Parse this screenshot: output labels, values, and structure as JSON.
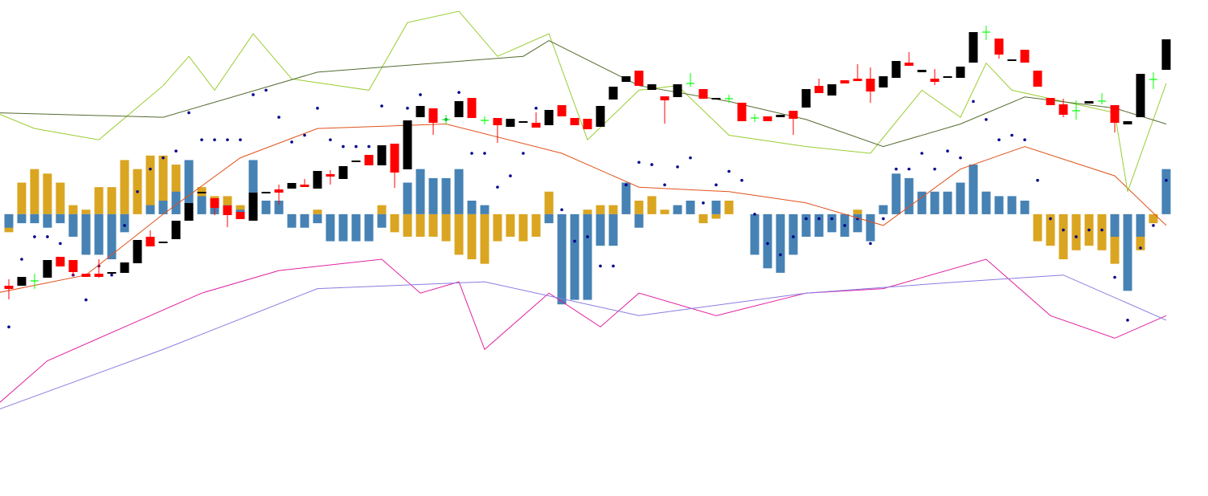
{
  "chart_data": [
    {
      "type": "candlestick",
      "xlim": [
        -0.6875,
        93.25
      ],
      "ylim": [
        0,
        618
      ],
      "up_color": "#000000",
      "down_color": "#ff0000",
      "doji_color": "#00ff00",
      "ohlc": [
        [
          262,
          270,
          245,
          258
        ],
        [
          262,
          273,
          262,
          273
        ],
        [
          268,
          277,
          258,
          268
        ],
        [
          272,
          294,
          272,
          294
        ],
        [
          298,
          298,
          286,
          286
        ],
        [
          294,
          294,
          274,
          279
        ],
        [
          277,
          277,
          273,
          273
        ],
        [
          277,
          295,
          272,
          273
        ],
        [
          277,
          279,
          277,
          279
        ],
        [
          278,
          291,
          278,
          291
        ],
        [
          290,
          319,
          290,
          319
        ],
        [
          323,
          331,
          311,
          311
        ],
        [
          315,
          317,
          315,
          317
        ],
        [
          320,
          343,
          320,
          343
        ],
        [
          343,
          365,
          343,
          365
        ],
        [
          377,
          379,
          377,
          379
        ],
        [
          371,
          371,
          350,
          359
        ],
        [
          362,
          362,
          335,
          350
        ],
        [
          354,
          354,
          345,
          345
        ],
        [
          343,
          378,
          343,
          378
        ],
        [
          377,
          379,
          377,
          379
        ],
        [
          382,
          388,
          363,
          378
        ],
        [
          383,
          390,
          383,
          390
        ],
        [
          388,
          395,
          385,
          385
        ],
        [
          383,
          405,
          383,
          405
        ],
        [
          401,
          406,
          388,
          398
        ],
        [
          395,
          411,
          395,
          411
        ],
        [
          417,
          418,
          417,
          418
        ],
        [
          425,
          425,
          412,
          412
        ],
        [
          412,
          437,
          412,
          437
        ],
        [
          439,
          439,
          384,
          403
        ],
        [
          407,
          468,
          407,
          468
        ],
        [
          472,
          486,
          472,
          486
        ],
        [
          483,
          483,
          450,
          465
        ],
        [
          469,
          475,
          463,
          469
        ],
        [
          472,
          492,
          472,
          492
        ],
        [
          496,
          496,
          471,
          471
        ],
        [
          468,
          473,
          463,
          468
        ],
        [
          471,
          471,
          440,
          462
        ],
        [
          460,
          470,
          460,
          470
        ],
        [
          466,
          467,
          466,
          467
        ],
        [
          465,
          478,
          459,
          459
        ],
        [
          462,
          481,
          462,
          481
        ],
        [
          487,
          487,
          473,
          473
        ],
        [
          471,
          471,
          462,
          462
        ],
        [
          470,
          470,
          457,
          457
        ],
        [
          460,
          486,
          460,
          486
        ],
        [
          494,
          510,
          494,
          510
        ],
        [
          516,
          523,
          516,
          523
        ],
        [
          530,
          530,
          511,
          511
        ],
        [
          506,
          513,
          506,
          513
        ],
        [
          498,
          498,
          464,
          493
        ],
        [
          497,
          513,
          497,
          513
        ],
        [
          514,
          527,
          510,
          514
        ],
        [
          507,
          507,
          495,
          495
        ],
        [
          494,
          496,
          494,
          496
        ],
        [
          495,
          500,
          490,
          495
        ],
        [
          490,
          490,
          467,
          467
        ],
        [
          471,
          476,
          466,
          471
        ],
        [
          473,
          473,
          467,
          467
        ],
        [
          472,
          475,
          472,
          475
        ],
        [
          480,
          480,
          450,
          470
        ],
        [
          484,
          507,
          484,
          507
        ],
        [
          511,
          520,
          502,
          502
        ],
        [
          499,
          513,
          499,
          513
        ],
        [
          518,
          518,
          514,
          514
        ],
        [
          520,
          538,
          517,
          517
        ],
        [
          520,
          534,
          490,
          504
        ],
        [
          509,
          523,
          509,
          523
        ],
        [
          521,
          542,
          521,
          542
        ],
        [
          540,
          553,
          536,
          536
        ],
        [
          528,
          531,
          528,
          531
        ],
        [
          520,
          532,
          512,
          516
        ],
        [
          521,
          523,
          521,
          523
        ],
        [
          521,
          535,
          521,
          535
        ],
        [
          540,
          578,
          540,
          578
        ],
        [
          578,
          586,
          568,
          578
        ],
        [
          570,
          570,
          545,
          550
        ],
        [
          542,
          544,
          542,
          544
        ],
        [
          556,
          556,
          540,
          540
        ],
        [
          530,
          530,
          510,
          510
        ],
        [
          496,
          496,
          487,
          487
        ],
        [
          488,
          495,
          472,
          475
        ],
        [
          480,
          493,
          469,
          480
        ],
        [
          489,
          492,
          489,
          492
        ],
        [
          492,
          502,
          488,
          492
        ],
        [
          487,
          487,
          453,
          465
        ],
        [
          463,
          467,
          463,
          467
        ],
        [
          472,
          526,
          472,
          526
        ],
        [
          519,
          528,
          507,
          519
        ],
        [
          531,
          569,
          531,
          569
        ]
      ]
    },
    {
      "type": "indicator",
      "xlim": [
        -0.6875,
        93.25
      ],
      "ylim": [
        -125,
        95
      ],
      "series": [
        {
          "type": "bar",
          "color": "#daa520",
          "values": [
            -8,
            14,
            20,
            18,
            14,
            4,
            2,
            12,
            12,
            24,
            20,
            26,
            26,
            22,
            20,
            12,
            8,
            8,
            4,
            6,
            0,
            0,
            -4,
            -2,
            2,
            0,
            0,
            0,
            0,
            4,
            -8,
            -10,
            -10,
            -10,
            -12,
            -18,
            -20,
            -22,
            -12,
            -10,
            -12,
            -10,
            10,
            0,
            0,
            2,
            4,
            4,
            14,
            6,
            8,
            2,
            0,
            4,
            -4,
            -2,
            6,
            0,
            -2,
            -4,
            -4,
            0,
            0,
            0,
            0,
            0,
            2,
            0,
            0,
            2,
            4,
            2,
            4,
            6,
            8,
            8,
            10,
            0,
            0,
            0,
            -12,
            -14,
            -20,
            -16,
            -14,
            -16,
            -22,
            -20,
            -16,
            -4,
            0
          ]
        },
        {
          "type": "bar",
          "color": "#4682b4",
          "values": [
            -6,
            -4,
            -4,
            -6,
            -4,
            -10,
            -18,
            -18,
            -20,
            -8,
            0,
            4,
            6,
            10,
            24,
            8,
            4,
            4,
            2,
            24,
            6,
            6,
            -6,
            -6,
            -4,
            -12,
            -12,
            -12,
            -12,
            -6,
            0,
            14,
            20,
            16,
            16,
            20,
            6,
            4,
            0,
            0,
            0,
            0,
            -4,
            -40,
            -38,
            -38,
            -14,
            -14,
            14,
            -6,
            0,
            0,
            4,
            6,
            0,
            6,
            0,
            0,
            -18,
            -24,
            -26,
            -18,
            -10,
            -10,
            -8,
            -10,
            -8,
            -12,
            4,
            18,
            16,
            10,
            10,
            10,
            14,
            22,
            10,
            8,
            8,
            6,
            0,
            0,
            0,
            0,
            0,
            0,
            -10,
            -34,
            -10,
            0,
            20
          ]
        },
        {
          "type": "scatter",
          "color": "#00008b",
          "values": [
            -50,
            -20,
            -10,
            -10,
            -13,
            -27,
            -38,
            -23,
            -27,
            -5,
            10,
            20,
            25,
            28,
            45,
            33,
            33,
            33,
            33,
            53,
            55,
            43,
            32,
            35,
            47,
            33,
            30,
            30,
            30,
            48,
            30,
            47,
            53,
            43,
            42,
            54,
            27,
            27,
            12,
            17,
            27,
            47,
            43,
            2,
            -12,
            -10,
            -23,
            -23,
            13,
            23,
            22,
            13,
            21,
            25,
            5,
            13,
            19,
            15,
            0,
            -13,
            -18,
            -10,
            -2,
            -2,
            -2,
            -5,
            -2,
            -13,
            -2,
            20,
            20,
            27,
            20,
            28,
            25,
            50,
            42,
            33,
            35,
            33,
            15,
            -2,
            -7,
            -10,
            -7,
            -7,
            -28,
            -47,
            -15,
            -5,
            15
          ]
        },
        {
          "type": "line",
          "color": "#e0521c",
          "x": [
            -1,
            6,
            12,
            18,
            24,
            34,
            43,
            49,
            56,
            62,
            68,
            74,
            79,
            86,
            90
          ],
          "values": [
            -35,
            -27,
            0,
            25,
            38,
            40,
            27,
            12,
            10,
            5,
            -5,
            20,
            30,
            17,
            -5
          ]
        },
        {
          "type": "line",
          "color": "#9acd32",
          "x": [
            -1,
            2,
            7,
            12,
            14,
            16,
            19,
            22,
            28,
            31,
            35,
            38,
            42,
            45,
            49,
            52,
            56,
            62,
            67,
            71,
            74,
            76,
            78,
            86,
            87,
            90
          ],
          "values": [
            45,
            38,
            33,
            57,
            70,
            55,
            80,
            60,
            55,
            85,
            90,
            70,
            80,
            33,
            55,
            57,
            35,
            30,
            27,
            55,
            43,
            67,
            55,
            45,
            10,
            58
          ]
        },
        {
          "type": "line",
          "color": "#556b2f",
          "x": [
            -1,
            12,
            24,
            40,
            42,
            49,
            56,
            62,
            68,
            74,
            79,
            86,
            90
          ],
          "values": [
            45,
            43,
            63,
            70,
            77,
            57,
            50,
            42,
            30,
            40,
            52,
            47,
            40
          ]
        },
        {
          "type": "line",
          "color": "#e020a0",
          "x": [
            -1,
            3,
            9,
            15,
            21,
            29,
            32,
            35,
            37,
            42,
            46,
            49,
            55,
            62,
            68,
            76,
            81,
            86,
            90
          ],
          "values": [
            -85,
            -65,
            -50,
            -35,
            -25,
            -20,
            -35,
            -30,
            -60,
            -35,
            -50,
            -35,
            -45,
            -35,
            -33,
            -20,
            -45,
            -55,
            -45
          ]
        },
        {
          "type": "line",
          "color": "#8a7be0",
          "x": [
            -1,
            12,
            24,
            37,
            49,
            62,
            74,
            82,
            90
          ],
          "values": [
            -87,
            -60,
            -33,
            -30,
            -45,
            -35,
            -30,
            -27,
            -47
          ]
        }
      ]
    }
  ]
}
